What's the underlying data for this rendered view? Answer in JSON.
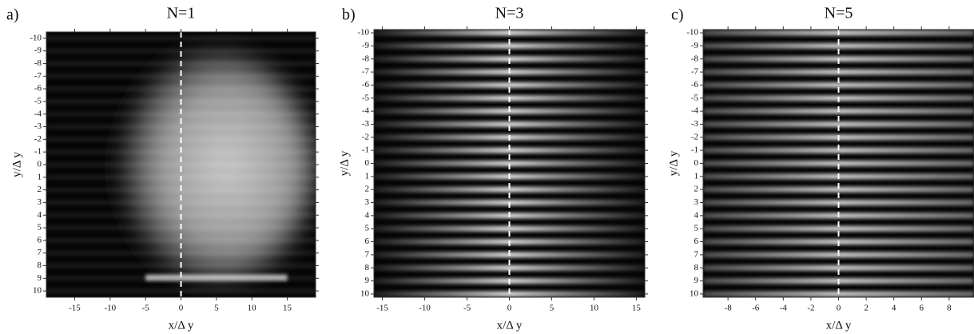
{
  "chart_data": [
    {
      "type": "image",
      "panel_label": "a)",
      "title": "N=1",
      "xlabel": "x/Δ y",
      "ylabel": "y/Δ y",
      "xlim": [
        -19,
        19
      ],
      "ylim": [
        -10.5,
        10.5
      ],
      "xticks": [
        -15,
        -10,
        -5,
        0,
        5,
        10,
        15
      ],
      "yticks": [
        -10,
        -9,
        -8,
        -7,
        -6,
        -5,
        -4,
        -3,
        -2,
        -1,
        0,
        1,
        2,
        3,
        4,
        5,
        6,
        7,
        8,
        9,
        10
      ],
      "vline": 0
    },
    {
      "type": "image",
      "panel_label": "b)",
      "title": "N=3",
      "xlabel": "x/Δ y",
      "ylabel": "y/Δ y",
      "xlim": [
        -16,
        16
      ],
      "ylim": [
        -10.25,
        10.25
      ],
      "xticks": [
        -15,
        -10,
        -5,
        0,
        5,
        10,
        15
      ],
      "yticks": [
        -10,
        -9,
        -8,
        -7,
        -6,
        -5,
        -4,
        -3,
        -2,
        -1,
        0,
        1,
        2,
        3,
        4,
        5,
        6,
        7,
        8,
        9,
        10
      ],
      "vline": 0
    },
    {
      "type": "image",
      "panel_label": "c)",
      "title": "N=5",
      "xlabel": "x/Δ y",
      "ylabel": "y/Δ y",
      "xlim": [
        -9.8,
        9.8
      ],
      "ylim": [
        -10.25,
        10.25
      ],
      "xticks": [
        -8,
        -6,
        -4,
        -2,
        0,
        2,
        4,
        6,
        8
      ],
      "yticks": [
        -10,
        -9,
        -8,
        -7,
        -6,
        -5,
        -4,
        -3,
        -2,
        -1,
        0,
        1,
        2,
        3,
        4,
        5,
        6,
        7,
        8,
        9,
        10
      ],
      "vline": 0
    }
  ]
}
